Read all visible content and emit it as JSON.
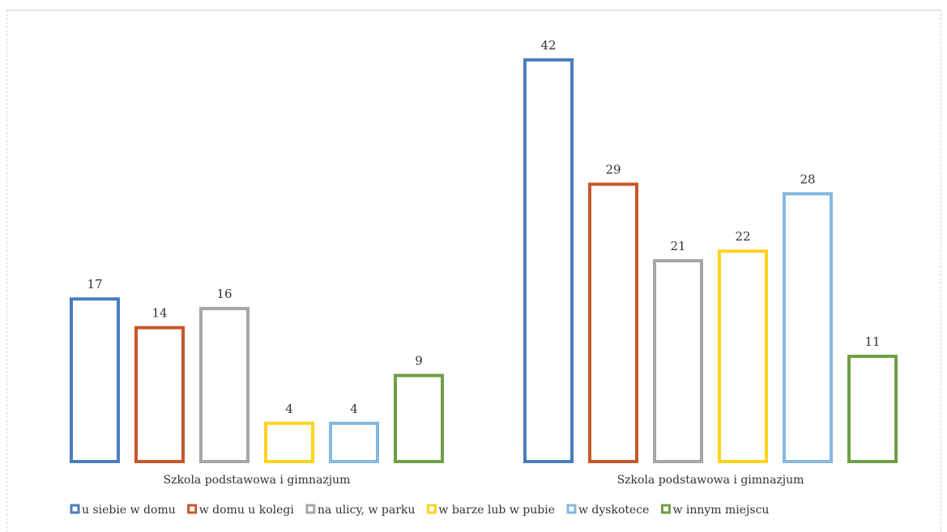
{
  "chart_data": {
    "type": "bar",
    "categories": [
      "Szkola podstawowa i gimnazjum",
      "Szkola podstawowa i gimnazjum"
    ],
    "series": [
      {
        "name": "u siebie w domu",
        "color": "#4a7ebb",
        "values": [
          17,
          42
        ]
      },
      {
        "name": "w domu u kolegi",
        "color": "#c8572b",
        "values": [
          14,
          29
        ]
      },
      {
        "name": "na ulicy, w parku",
        "color": "#a6a6a6",
        "values": [
          16,
          21
        ]
      },
      {
        "name": "w barze lub w pubie",
        "color": "#ffd21f",
        "values": [
          4,
          22
        ]
      },
      {
        "name": "w dyskotece",
        "color": "#86b8e0",
        "values": [
          4,
          28
        ]
      },
      {
        "name": "w innym miejscu",
        "color": "#6f9e46",
        "values": [
          9,
          11
        ]
      }
    ],
    "title": "",
    "xlabel": "",
    "ylabel": "",
    "ylim": [
      0,
      42
    ],
    "grid": false,
    "legend": "bottom"
  }
}
